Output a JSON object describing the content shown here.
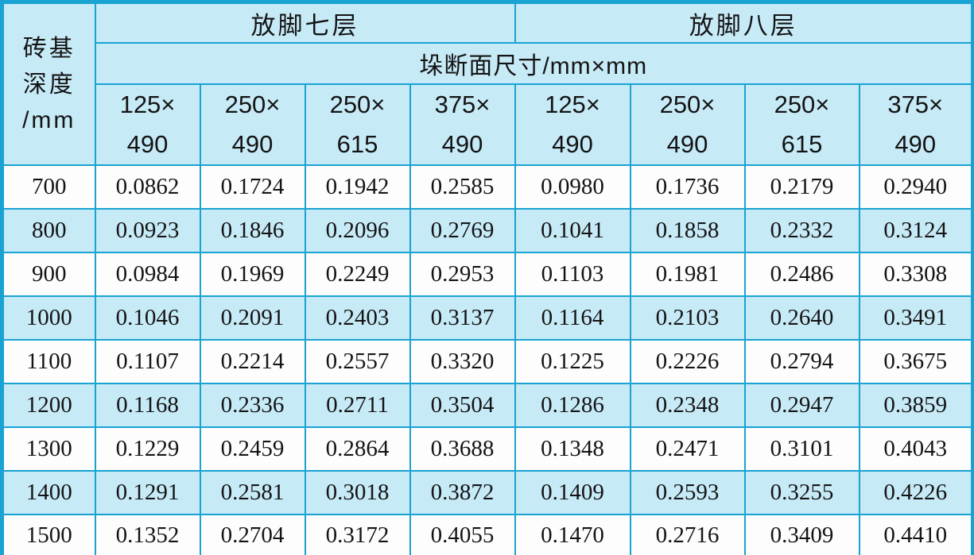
{
  "table": {
    "corner_header": {
      "line1": "砖基",
      "line2": "深度",
      "line3": "/mm"
    },
    "group_headers": [
      {
        "label": "放脚七层"
      },
      {
        "label": "放脚八层"
      }
    ],
    "section_header": "垛断面尺寸/mm×mm",
    "column_headers": [
      {
        "line1": "125×",
        "line2": "490"
      },
      {
        "line1": "250×",
        "line2": "490"
      },
      {
        "line1": "250×",
        "line2": "615"
      },
      {
        "line1": "375×",
        "line2": "490"
      },
      {
        "line1": "125×",
        "line2": "490"
      },
      {
        "line1": "250×",
        "line2": "490"
      },
      {
        "line1": "250×",
        "line2": "615"
      },
      {
        "line1": "375×",
        "line2": "490"
      }
    ],
    "rows": [
      {
        "depth": "700",
        "values": [
          "0.0862",
          "0.1724",
          "0.1942",
          "0.2585",
          "0.0980",
          "0.1736",
          "0.2179",
          "0.2940"
        ]
      },
      {
        "depth": "800",
        "values": [
          "0.0923",
          "0.1846",
          "0.2096",
          "0.2769",
          "0.1041",
          "0.1858",
          "0.2332",
          "0.3124"
        ]
      },
      {
        "depth": "900",
        "values": [
          "0.0984",
          "0.1969",
          "0.2249",
          "0.2953",
          "0.1103",
          "0.1981",
          "0.2486",
          "0.3308"
        ]
      },
      {
        "depth": "1000",
        "values": [
          "0.1046",
          "0.2091",
          "0.2403",
          "0.3137",
          "0.1164",
          "0.2103",
          "0.2640",
          "0.3491"
        ]
      },
      {
        "depth": "1100",
        "values": [
          "0.1107",
          "0.2214",
          "0.2557",
          "0.3320",
          "0.1225",
          "0.2226",
          "0.2794",
          "0.3675"
        ]
      },
      {
        "depth": "1200",
        "values": [
          "0.1168",
          "0.2336",
          "0.2711",
          "0.3504",
          "0.1286",
          "0.2348",
          "0.2947",
          "0.3859"
        ]
      },
      {
        "depth": "1300",
        "values": [
          "0.1229",
          "0.2459",
          "0.2864",
          "0.3688",
          "0.1348",
          "0.2471",
          "0.3101",
          "0.4043"
        ]
      },
      {
        "depth": "1400",
        "values": [
          "0.1291",
          "0.2581",
          "0.3018",
          "0.3872",
          "0.1409",
          "0.2593",
          "0.3255",
          "0.4226"
        ]
      },
      {
        "depth": "1500",
        "values": [
          "0.1352",
          "0.2704",
          "0.3172",
          "0.4055",
          "0.1470",
          "0.2716",
          "0.3409",
          "0.4410"
        ]
      }
    ],
    "colors": {
      "border": "#18a3d2",
      "header_bg": "#c7eaf7",
      "row_blue_bg": "#c7eaf7",
      "row_white_bg": "#fdfdfd",
      "text": "#141414"
    }
  }
}
